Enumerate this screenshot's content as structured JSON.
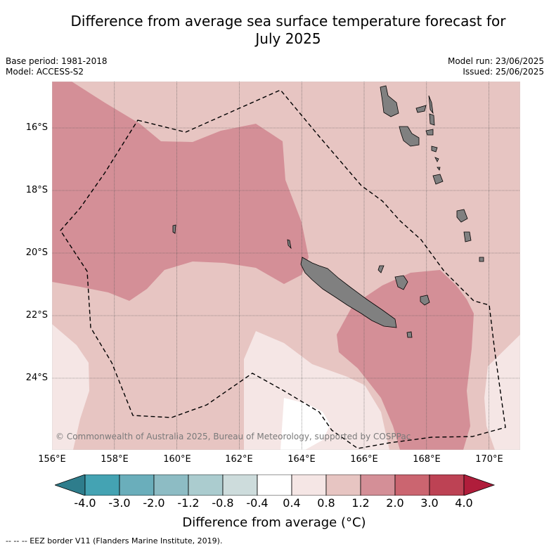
{
  "title_line1": "Difference from average sea surface temperature forecast for",
  "title_line2": "July 2025",
  "base_period": "Base period: 1981-2018",
  "model": "Model: ACCESS-S2",
  "model_run": "Model run: 23/06/2025",
  "issued": "Issued: 25/06/2025",
  "copyright": "© Commonwealth of Australia 2025, Bureau of Meteorology, supported by COSPPac",
  "lat_labels": [
    "16°S",
    "18°S",
    "20°S",
    "22°S",
    "24°S"
  ],
  "lon_labels": [
    "156°E",
    "158°E",
    "160°E",
    "162°E",
    "164°E",
    "166°E",
    "168°E",
    "170°E"
  ],
  "colorbar": {
    "ticks": [
      "-4.0",
      "-3.0",
      "-2.0",
      "-1.2",
      "-0.8",
      "-0.4",
      "0.4",
      "0.8",
      "1.2",
      "2.0",
      "3.0",
      "4.0"
    ],
    "colors": [
      "#2e7d8c",
      "#44a3b3",
      "#6aaebb",
      "#8dbcc4",
      "#abcccf",
      "#cddcdc",
      "#ffffff",
      "#f5e6e5",
      "#e7c5c2",
      "#d48f97",
      "#cb6570",
      "#bd4254",
      "#b01d3b"
    ],
    "title": "Difference from average (°C)"
  },
  "footer": "--  --  -- EEZ border V11 (Flanders Marine Institute, 2019).",
  "colors": {
    "background": "#e7c5c2",
    "warm_band": "#d48f97",
    "light_band": "#f5e6e5",
    "white_band": "#ffffff",
    "land": "#808080",
    "grid": "#555555"
  }
}
